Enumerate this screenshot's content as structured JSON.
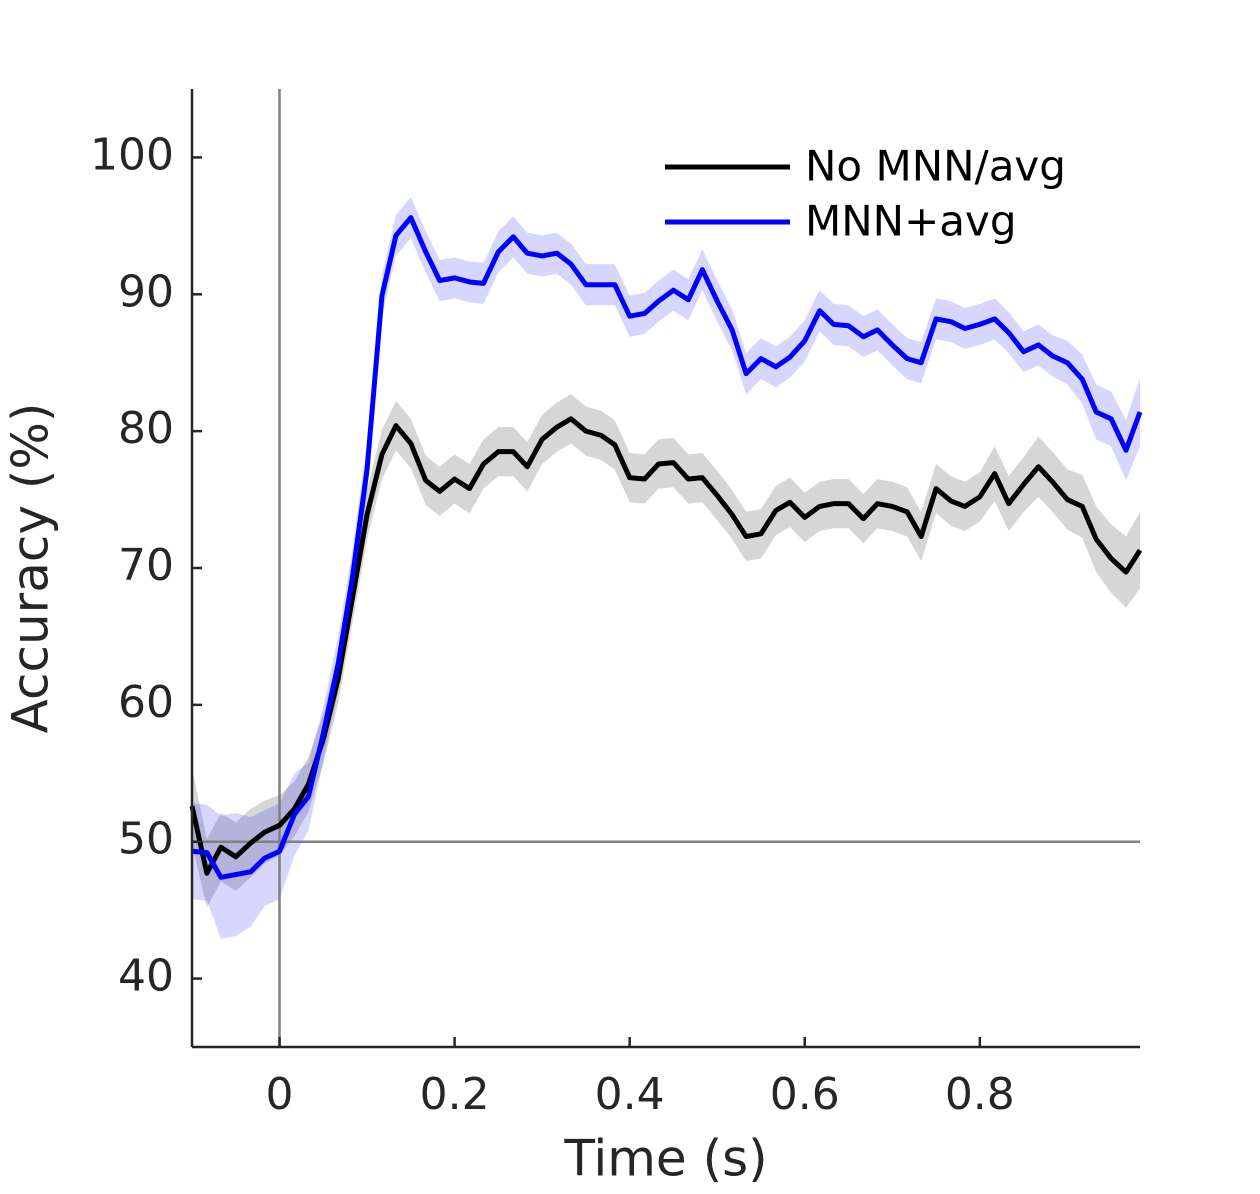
{
  "chart_data": {
    "type": "line",
    "xlabel": "Time (s)",
    "ylabel": "Accuracy (%)",
    "x": [
      -0.1,
      -0.083,
      -0.067,
      -0.05,
      -0.033,
      -0.017,
      0,
      0.017,
      0.033,
      0.05,
      0.067,
      0.083,
      0.1,
      0.117,
      0.133,
      0.15,
      0.167,
      0.183,
      0.2,
      0.217,
      0.233,
      0.25,
      0.267,
      0.283,
      0.3,
      0.317,
      0.333,
      0.35,
      0.367,
      0.383,
      0.4,
      0.417,
      0.433,
      0.45,
      0.467,
      0.483,
      0.5,
      0.517,
      0.533,
      0.55,
      0.567,
      0.583,
      0.6,
      0.617,
      0.633,
      0.65,
      0.667,
      0.683,
      0.7,
      0.717,
      0.733,
      0.75,
      0.767,
      0.783,
      0.8,
      0.817,
      0.833,
      0.85,
      0.867,
      0.883,
      0.9,
      0.917,
      0.933,
      0.95,
      0.967,
      0.983
    ],
    "series": [
      {
        "name": "No MNN/avg",
        "color": "#000000",
        "values": [
          52.6,
          47.7,
          49.6,
          48.9,
          49.9,
          50.7,
          51.2,
          52.4,
          54.2,
          57.5,
          61.9,
          67.7,
          73.9,
          78.3,
          80.4,
          79.1,
          76.4,
          75.6,
          76.5,
          75.8,
          77.6,
          78.5,
          78.5,
          77.4,
          79.4,
          80.3,
          80.9,
          80.0,
          79.7,
          79.0,
          76.6,
          76.5,
          77.6,
          77.7,
          76.5,
          76.6,
          75.3,
          73.9,
          72.3,
          72.5,
          74.2,
          74.8,
          73.7,
          74.5,
          74.7,
          74.7,
          73.6,
          74.7,
          74.5,
          74.1,
          72.3,
          75.8,
          74.9,
          74.5,
          75.2,
          76.9,
          74.7,
          76.1,
          77.4,
          76.3,
          75.0,
          74.5,
          72.1,
          70.7,
          69.7,
          71.3
        ],
        "error": [
          2.8,
          2.5,
          2.5,
          2.5,
          2.5,
          2.3,
          2.2,
          2.0,
          2.0,
          1.8,
          1.8,
          1.8,
          1.8,
          1.8,
          1.8,
          1.8,
          1.8,
          1.8,
          1.8,
          1.8,
          1.8,
          1.8,
          1.8,
          1.8,
          1.8,
          1.8,
          1.8,
          1.8,
          1.8,
          1.8,
          1.8,
          1.8,
          1.8,
          1.8,
          1.8,
          1.8,
          1.8,
          1.8,
          1.8,
          1.8,
          1.8,
          1.8,
          1.8,
          1.8,
          1.8,
          1.8,
          1.8,
          1.8,
          1.8,
          1.8,
          1.8,
          1.8,
          1.8,
          1.8,
          1.8,
          2.0,
          2.0,
          2.0,
          2.2,
          2.2,
          2.2,
          2.3,
          2.4,
          2.5,
          2.6,
          2.8
        ]
      },
      {
        "name": "MNN+avg",
        "color": "#0000ff",
        "values": [
          49.3,
          49.2,
          47.4,
          47.6,
          47.8,
          48.8,
          49.3,
          52.0,
          53.3,
          57.9,
          63.0,
          69.2,
          77.2,
          89.9,
          94.3,
          95.6,
          93.1,
          91.0,
          91.2,
          90.9,
          90.8,
          93.1,
          94.2,
          93.0,
          92.8,
          93.0,
          92.2,
          90.7,
          90.7,
          90.7,
          88.4,
          88.6,
          89.5,
          90.3,
          89.6,
          91.8,
          89.5,
          87.4,
          84.2,
          85.3,
          84.7,
          85.4,
          86.6,
          88.8,
          87.8,
          87.7,
          86.9,
          87.4,
          86.3,
          85.3,
          85.0,
          88.2,
          88.0,
          87.5,
          87.8,
          88.2,
          87.2,
          85.8,
          86.3,
          85.5,
          85.0,
          83.8,
          81.4,
          80.9,
          78.6,
          81.4
        ],
        "error": [
          3.5,
          3.5,
          4.5,
          4.5,
          4.0,
          3.5,
          3.5,
          3.0,
          2.5,
          2.0,
          2.0,
          2.0,
          2.0,
          1.5,
          1.5,
          1.5,
          1.5,
          1.5,
          1.5,
          1.5,
          1.5,
          1.5,
          1.5,
          1.5,
          1.5,
          1.5,
          1.5,
          1.5,
          1.5,
          1.5,
          1.5,
          1.5,
          1.5,
          1.5,
          1.5,
          1.5,
          1.5,
          1.5,
          1.5,
          1.5,
          1.5,
          1.5,
          1.5,
          1.5,
          1.5,
          1.5,
          1.5,
          1.5,
          1.5,
          1.5,
          1.5,
          1.5,
          1.5,
          1.5,
          1.5,
          1.5,
          1.5,
          1.5,
          1.5,
          1.5,
          1.6,
          1.8,
          2.0,
          2.0,
          2.2,
          2.5
        ]
      }
    ],
    "xlim": [
      -0.1,
      0.983
    ],
    "ylim": [
      35,
      105
    ],
    "xticks": [
      0,
      0.2,
      0.4,
      0.6,
      0.8
    ],
    "yticks": [
      40,
      50,
      60,
      70,
      80,
      90,
      100
    ],
    "hlines": [
      50
    ],
    "vlines": [
      0
    ],
    "legend": "upper right",
    "grid": false
  }
}
